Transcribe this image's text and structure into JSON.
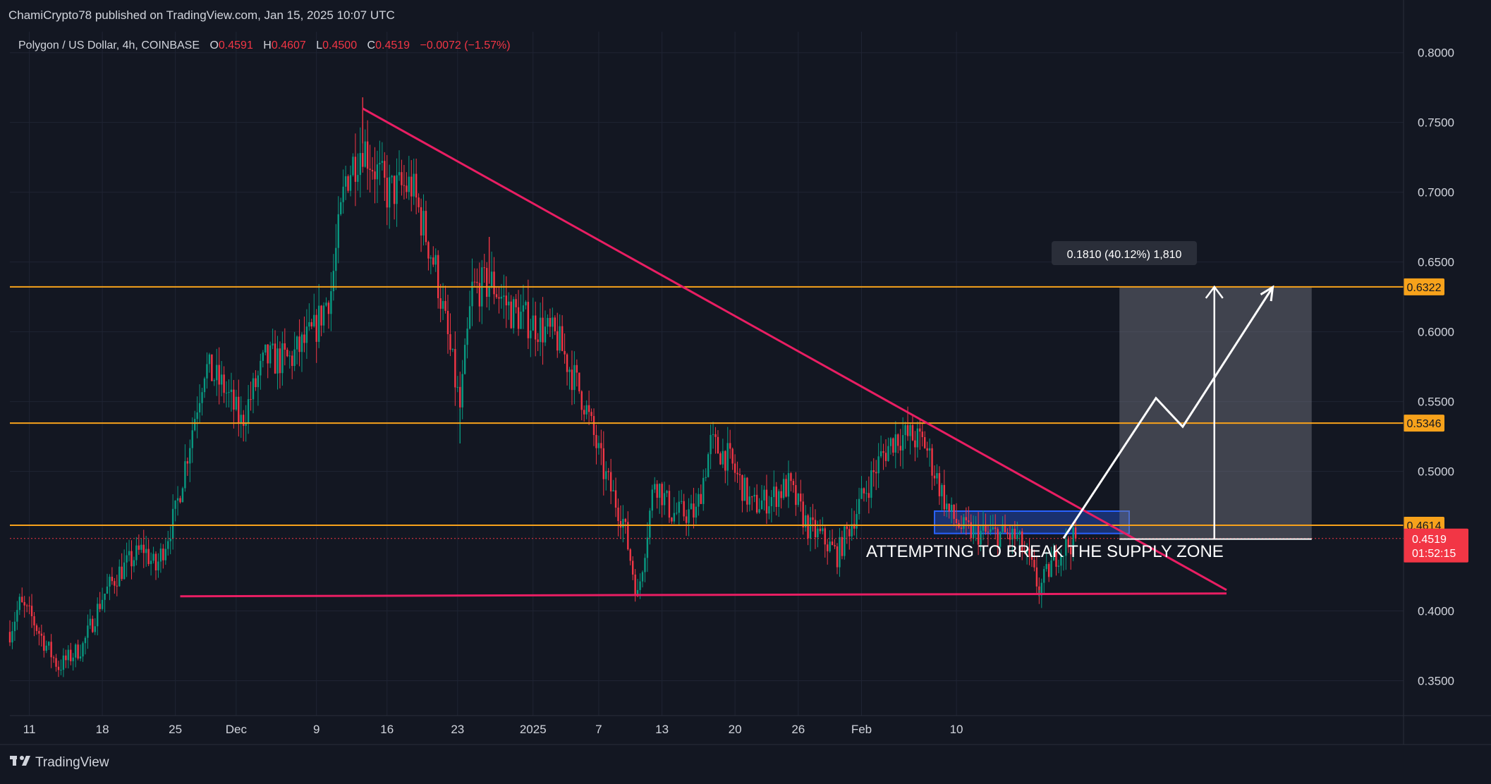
{
  "header": {
    "publisher_line": "ChamiCrypto78 published on TradingView.com, Jan 15, 2025 10:07 UTC"
  },
  "legend": {
    "symbol": "Polygon / US Dollar, 4h, COINBASE",
    "o_label": "O",
    "o_value": "0.4591",
    "h_label": "H",
    "h_value": "0.4607",
    "l_label": "L",
    "l_value": "0.4500",
    "c_label": "C",
    "c_value": "0.4519",
    "change": "−0.0072 (−1.57%)"
  },
  "footer": {
    "brand": "TradingView"
  },
  "colors": {
    "background": "#131722",
    "up": "#089981",
    "down": "#f23645",
    "level": "#f7a21b",
    "trendline": "#e91e63",
    "zone": "#2962ff",
    "annotation": "#ffffff"
  },
  "chart_data": {
    "type": "candlestick",
    "interval": "4h",
    "ylim": [
      0.325,
      0.815
    ],
    "y_ticks": [
      "0.8000",
      "0.7500",
      "0.7000",
      "0.6500",
      "0.6000",
      "0.5500",
      "0.5000",
      "0.4000",
      "0.3500"
    ],
    "x_ticks": [
      "11",
      "18",
      "25",
      "Dec",
      "9",
      "16",
      "23",
      "2025",
      "7",
      "13",
      "20",
      "26",
      "Feb",
      "10"
    ],
    "price_path": [
      [
        0,
        0.385
      ],
      [
        4,
        0.405
      ],
      [
        9,
        0.395
      ],
      [
        14,
        0.378
      ],
      [
        20,
        0.36
      ],
      [
        30,
        0.375
      ],
      [
        38,
        0.41
      ],
      [
        45,
        0.428
      ],
      [
        55,
        0.445
      ],
      [
        60,
        0.43
      ],
      [
        68,
        0.47
      ],
      [
        80,
        0.575
      ],
      [
        88,
        0.56
      ],
      [
        95,
        0.535
      ],
      [
        105,
        0.58
      ],
      [
        115,
        0.58
      ],
      [
        125,
        0.6
      ],
      [
        132,
        0.63
      ],
      [
        138,
        0.71
      ],
      [
        145,
        0.735
      ],
      [
        155,
        0.7
      ],
      [
        165,
        0.705
      ],
      [
        175,
        0.645
      ],
      [
        185,
        0.545
      ],
      [
        190,
        0.63
      ],
      [
        198,
        0.635
      ],
      [
        206,
        0.615
      ],
      [
        216,
        0.605
      ],
      [
        225,
        0.595
      ],
      [
        236,
        0.55
      ],
      [
        244,
        0.5
      ],
      [
        252,
        0.465
      ],
      [
        258,
        0.41
      ],
      [
        265,
        0.495
      ],
      [
        272,
        0.47
      ],
      [
        282,
        0.47
      ],
      [
        288,
        0.52
      ],
      [
        295,
        0.51
      ],
      [
        305,
        0.475
      ],
      [
        312,
        0.48
      ],
      [
        320,
        0.49
      ],
      [
        328,
        0.46
      ],
      [
        334,
        0.452
      ],
      [
        340,
        0.44
      ],
      [
        350,
        0.48
      ],
      [
        358,
        0.51
      ],
      [
        364,
        0.525
      ],
      [
        370,
        0.525
      ],
      [
        376,
        0.52
      ],
      [
        382,
        0.49
      ],
      [
        386,
        0.47
      ],
      [
        392,
        0.458
      ],
      [
        400,
        0.455
      ],
      [
        408,
        0.455
      ],
      [
        414,
        0.452
      ],
      [
        420,
        0.43
      ],
      [
        423,
        0.415
      ],
      [
        430,
        0.44
      ],
      [
        438,
        0.452
      ]
    ],
    "last_price": "0.4519",
    "countdown": "01:52:15",
    "levels": [
      {
        "label": "0.6322",
        "value": 0.6322
      },
      {
        "label": "0.5346",
        "value": 0.5346
      },
      {
        "label": "0.4614",
        "value": 0.4614
      }
    ],
    "annotations": {
      "measure_label": "0.1810 (40.12%) 1,810",
      "caption": "ATTEMPTING TO BREAK THE SUPPLY ZONE"
    },
    "trendlines": {
      "descending": [
        [
          145,
          0.76
        ],
        [
          500,
          0.415
        ]
      ],
      "support": [
        [
          70,
          0.4105
        ],
        [
          500,
          0.4125
        ]
      ]
    },
    "supply_zone": {
      "x": [
        380,
        460
      ],
      "y": [
        0.4555,
        0.4715
      ]
    },
    "measure_box": {
      "x": [
        456,
        535
      ],
      "y": [
        0.4515,
        0.6322
      ]
    },
    "projection_path": [
      [
        433,
        0.452
      ],
      [
        471,
        0.5525
      ],
      [
        482,
        0.532
      ],
      [
        519,
        0.632
      ]
    ],
    "vertical_arrow": {
      "x": 495,
      "y": [
        0.4515,
        0.6322
      ]
    }
  }
}
